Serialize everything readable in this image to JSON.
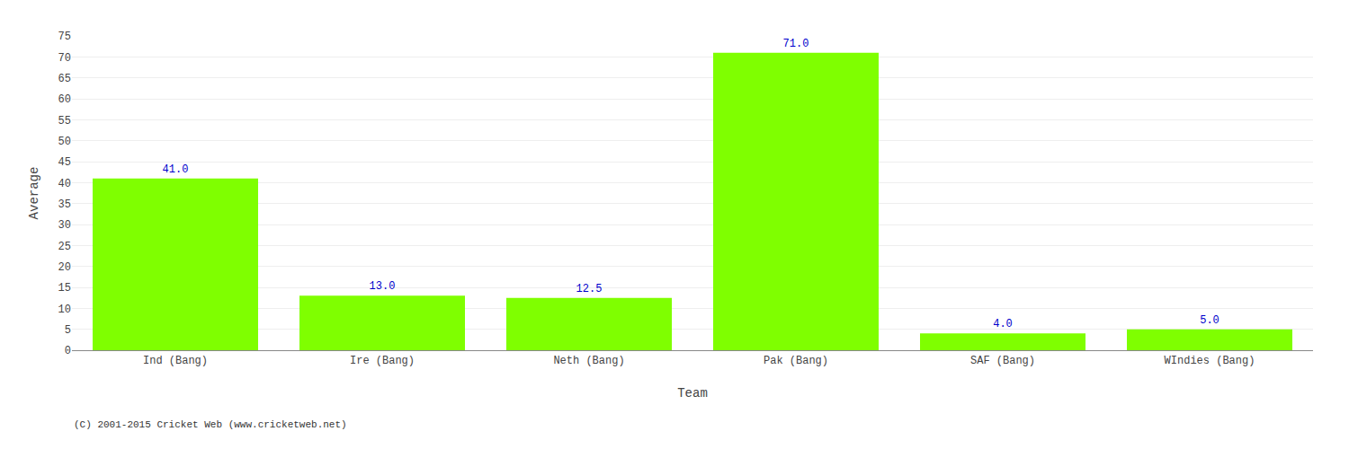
{
  "chart_data": {
    "type": "bar",
    "categories": [
      "Ind (Bang)",
      "Ire (Bang)",
      "Neth (Bang)",
      "Pak (Bang)",
      "SAF (Bang)",
      "WIndies (Bang)"
    ],
    "values": [
      41.0,
      13.0,
      12.5,
      71.0,
      4.0,
      5.0
    ],
    "value_labels": [
      "41.0",
      "13.0",
      "12.5",
      "71.0",
      "4.0",
      "5.0"
    ],
    "data_labels": true,
    "color": "#7fff00",
    "xlabel": "Team",
    "ylabel": "Average",
    "ylim": [
      0,
      75
    ],
    "yticks": [
      0,
      5,
      10,
      15,
      20,
      25,
      30,
      35,
      40,
      45,
      50,
      55,
      60,
      65,
      70,
      75
    ],
    "grid": true,
    "annotations": [
      "(C) 2001-2015 Cricket Web (www.cricketweb.net)"
    ]
  }
}
